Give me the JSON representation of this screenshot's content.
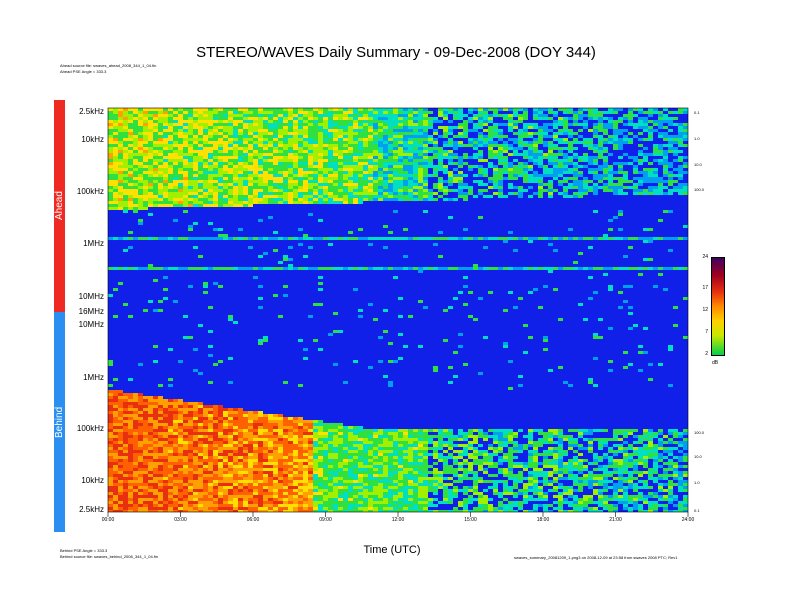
{
  "title": "STEREO/WAVES Daily Summary - 09-Dec-2008 (DOY 344)",
  "ahead_source": "Ahead source file: swaves_ahead_2008_344_1_04.fin",
  "ahead_pse": "Ahead PSE Angle = 333.3",
  "behind_pse": "Behind PSE Angle = 333.3",
  "behind_source": "Behind source file: swaves_behind_2008_344_1_04.fin",
  "footer_right": "swaves_summary_20081209_1.png3 on 2008-12-09 at 23:58 from swaves 2008 PTC; Rev1",
  "band_ahead": "Ahead",
  "band_behind": "Behind",
  "colors": {
    "ahead_band": "#ee2a22",
    "behind_band": "#2a8ff0",
    "background_blue": "#1020e8"
  },
  "chart_data": {
    "type": "heatmap",
    "xlabel": "Time (UTC)",
    "x_ticks": [
      "00:00",
      "03:00",
      "06:00",
      "09:00",
      "12:00",
      "15:00",
      "18:00",
      "21:00",
      "24:00"
    ],
    "ahead_y_ticks": [
      "2.5kHz",
      "10kHz",
      "100kHz",
      "1MHz",
      "10MHz",
      "16MHz"
    ],
    "behind_y_ticks": [
      "10MHz",
      "1MHz",
      "100kHz",
      "10kHz",
      "2.5kHz"
    ],
    "right_ticks_ahead": [
      "0.1",
      "1.0",
      "10.0",
      "100.0"
    ],
    "right_ticks_behind": [
      "100.0",
      "10.0",
      "1.0",
      "0.1"
    ],
    "colorbar": {
      "ticks": [
        "24",
        "17",
        "12",
        "7",
        "2"
      ],
      "unit": "dB",
      "range": [
        2,
        24
      ]
    },
    "panels": [
      {
        "name": "Ahead",
        "freq_range": [
          "2.5kHz",
          "16MHz"
        ]
      },
      {
        "name": "Behind",
        "freq_range": [
          "2.5kHz",
          "16MHz"
        ]
      }
    ]
  }
}
